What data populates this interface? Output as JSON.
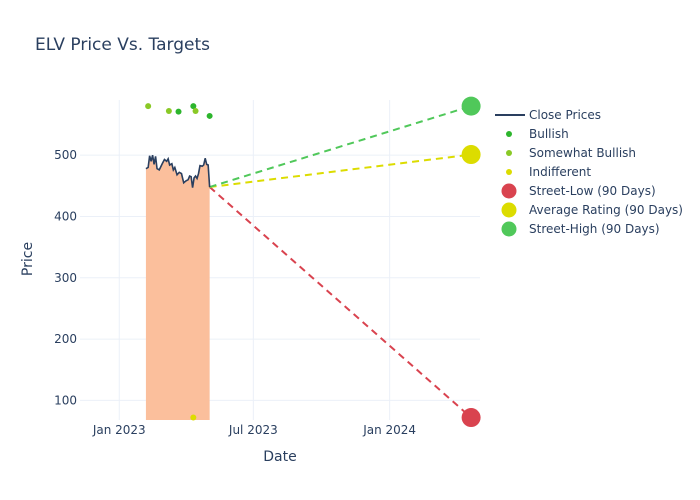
{
  "chart_data": {
    "type": "line",
    "title": "ELV Price Vs. Targets",
    "xlabel": "Date",
    "ylabel": "Price",
    "x_range": [
      "2022-11-09",
      "2024-05-02"
    ],
    "y_range": [
      68,
      590
    ],
    "x_ticks": [
      {
        "date": "2023-01-01",
        "label": "Jan 2023"
      },
      {
        "date": "2023-07-01",
        "label": "Jul 2023"
      },
      {
        "date": "2024-01-01",
        "label": "Jan 2024"
      }
    ],
    "y_ticks": [
      100,
      200,
      300,
      400,
      500
    ],
    "grid": true,
    "legend_position": "right",
    "close_prices": {
      "name": "Close Prices",
      "color": "#2a3f5f",
      "fill_color": "#fbbf9c",
      "points": [
        [
          "2023-02-06",
          478
        ],
        [
          "2023-02-09",
          480
        ],
        [
          "2023-02-11",
          499
        ],
        [
          "2023-02-13",
          490
        ],
        [
          "2023-02-15",
          500
        ],
        [
          "2023-02-17",
          485
        ],
        [
          "2023-02-19",
          498
        ],
        [
          "2023-02-21",
          478
        ],
        [
          "2023-02-24",
          476
        ],
        [
          "2023-02-28",
          486
        ],
        [
          "2023-03-03",
          493
        ],
        [
          "2023-03-06",
          490
        ],
        [
          "2023-03-08",
          494
        ],
        [
          "2023-03-10",
          484
        ],
        [
          "2023-03-13",
          486
        ],
        [
          "2023-03-15",
          476
        ],
        [
          "2023-03-17",
          480
        ],
        [
          "2023-03-20",
          468
        ],
        [
          "2023-03-23",
          472
        ],
        [
          "2023-03-26",
          470
        ],
        [
          "2023-03-29",
          455
        ],
        [
          "2023-04-01",
          458
        ],
        [
          "2023-04-04",
          460
        ],
        [
          "2023-04-06",
          466
        ],
        [
          "2023-04-08",
          465
        ],
        [
          "2023-04-10",
          447
        ],
        [
          "2023-04-12",
          463
        ],
        [
          "2023-04-14",
          466
        ],
        [
          "2023-04-16",
          462
        ],
        [
          "2023-04-18",
          470
        ],
        [
          "2023-04-20",
          483
        ],
        [
          "2023-04-23",
          482
        ],
        [
          "2023-04-25",
          484
        ],
        [
          "2023-04-27",
          495
        ],
        [
          "2023-04-29",
          485
        ],
        [
          "2023-05-01",
          484
        ],
        [
          "2023-05-03",
          448
        ]
      ]
    },
    "ratings": [
      {
        "name": "Bullish",
        "color": "#2db52d",
        "points": [
          [
            "2023-03-22",
            571
          ],
          [
            "2023-04-11",
            580
          ],
          [
            "2023-05-03",
            564
          ]
        ]
      },
      {
        "name": "Somewhat Bullish",
        "color": "#8ac926",
        "points": [
          [
            "2023-02-09",
            580
          ],
          [
            "2023-03-09",
            572
          ],
          [
            "2023-04-14",
            572
          ]
        ]
      },
      {
        "name": "Indifferent",
        "color": "#dcdc00",
        "points": [
          [
            "2023-04-11",
            72
          ]
        ]
      }
    ],
    "targets": [
      {
        "name": "Street-Low (90 Days)",
        "color": "#d9434f",
        "start": [
          "2023-05-03",
          448
        ],
        "end": [
          "2024-04-20",
          72
        ]
      },
      {
        "name": "Average Rating (90 Days)",
        "color": "#dcdc00",
        "start": [
          "2023-05-03",
          448
        ],
        "end": [
          "2024-04-20",
          501
        ]
      },
      {
        "name": "Street-High (90 Days)",
        "color": "#50c85a",
        "start": [
          "2023-05-03",
          448
        ],
        "end": [
          "2024-04-20",
          580
        ]
      }
    ]
  }
}
